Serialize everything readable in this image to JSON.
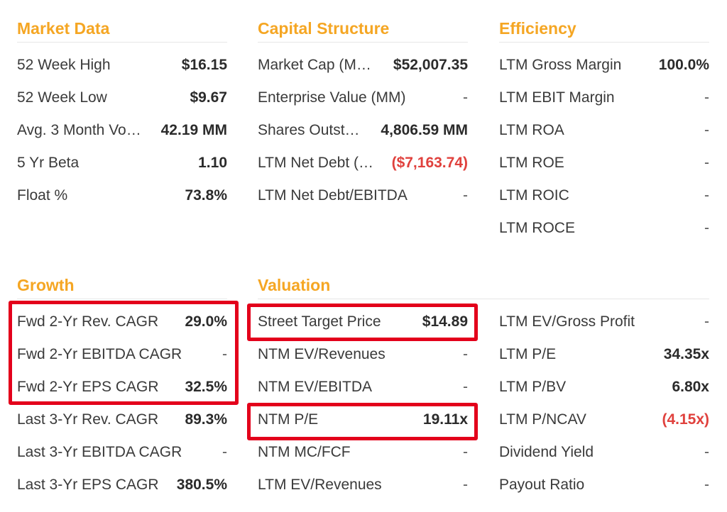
{
  "sections": {
    "market_data": {
      "title": "Market Data",
      "rows": [
        {
          "label": "52 Week High",
          "value": "$16.15"
        },
        {
          "label": "52 Week Low",
          "value": "$9.67"
        },
        {
          "label": "Avg. 3 Month Vo…",
          "value": "42.19 MM"
        },
        {
          "label": "5 Yr Beta",
          "value": "1.10"
        },
        {
          "label": "Float %",
          "value": "73.8%"
        }
      ]
    },
    "capital_structure": {
      "title": "Capital Structure",
      "rows": [
        {
          "label": "Market Cap (M…",
          "value": "$52,007.35"
        },
        {
          "label": "Enterprise Value (MM)",
          "value": "-"
        },
        {
          "label": "Shares Outst…",
          "value": "4,806.59 MM"
        },
        {
          "label": "LTM Net Debt (…",
          "value": "($7,163.74)"
        },
        {
          "label": "LTM Net Debt/EBITDA",
          "value": "-"
        }
      ]
    },
    "efficiency": {
      "title": "Efficiency",
      "rows": [
        {
          "label": "LTM Gross Margin",
          "value": "100.0%"
        },
        {
          "label": "LTM EBIT Margin",
          "value": "-"
        },
        {
          "label": "LTM ROA",
          "value": "-"
        },
        {
          "label": "LTM ROE",
          "value": "-"
        },
        {
          "label": "LTM ROIC",
          "value": "-"
        },
        {
          "label": "LTM ROCE",
          "value": "-"
        }
      ]
    },
    "growth": {
      "title": "Growth",
      "rows": [
        {
          "label": "Fwd 2-Yr Rev. CAGR",
          "value": "29.0%"
        },
        {
          "label": "Fwd 2-Yr EBITDA CAGR",
          "value": "-"
        },
        {
          "label": "Fwd 2-Yr EPS CAGR",
          "value": "32.5%"
        },
        {
          "label": "Last 3-Yr Rev. CAGR",
          "value": "89.3%"
        },
        {
          "label": "Last 3-Yr EBITDA CAGR",
          "value": "-"
        },
        {
          "label": "Last 3-Yr EPS CAGR",
          "value": "380.5%"
        }
      ]
    },
    "valuation": {
      "title": "Valuation",
      "rows": [
        {
          "label": "Street Target Price",
          "value": "$14.89"
        },
        {
          "label": "NTM EV/Revenues",
          "value": "-"
        },
        {
          "label": "NTM EV/EBITDA",
          "value": "-"
        },
        {
          "label": "NTM P/E",
          "value": "19.11x"
        },
        {
          "label": "NTM MC/FCF",
          "value": "-"
        },
        {
          "label": "LTM EV/Revenues",
          "value": "-"
        }
      ]
    },
    "valuation_right": {
      "rows": [
        {
          "label": "LTM EV/Gross Profit",
          "value": "-"
        },
        {
          "label": "LTM P/E",
          "value": "34.35x"
        },
        {
          "label": "LTM P/BV",
          "value": "6.80x"
        },
        {
          "label": "LTM P/NCAV",
          "value": "(4.15x)"
        },
        {
          "label": "Dividend Yield",
          "value": "-"
        },
        {
          "label": "Payout Ratio",
          "value": "-"
        }
      ]
    }
  },
  "colors": {
    "section_title": "#f5a623",
    "negative_value": "#e0413d",
    "highlight_box": "#e3001b"
  }
}
